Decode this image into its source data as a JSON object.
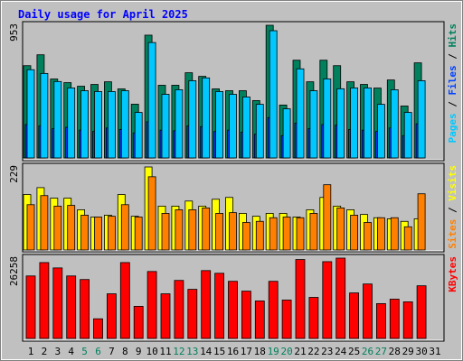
{
  "chart_data": [
    {
      "type": "bar",
      "title": "Daily usage for April 2025",
      "legend_separator": " / ",
      "ylim": [
        0,
        953
      ],
      "yticks": [
        953
      ],
      "series": [
        {
          "name": "Hits",
          "color": "#00805c",
          "values": [
            663,
            741,
            567,
            541,
            515,
            528,
            547,
            496,
            386,
            882,
            522,
            522,
            612,
            586,
            496,
            483,
            483,
            412,
            953,
            380,
            702,
            547,
            702,
            663,
            547,
            528,
            502,
            560,
            373,
            683,
            null
          ]
        },
        {
          "name": "Files",
          "color": "#0040ff",
          "values": [
            240,
            230,
            210,
            220,
            200,
            190,
            215,
            205,
            180,
            260,
            200,
            195,
            230,
            225,
            190,
            200,
            185,
            170,
            290,
            160,
            250,
            210,
            240,
            235,
            205,
            200,
            190,
            215,
            160,
            245,
            null
          ]
        },
        {
          "name": "Pages",
          "color": "#00c8ff",
          "values": [
            634,
            607,
            549,
            503,
            483,
            477,
            477,
            483,
            327,
            829,
            457,
            490,
            555,
            575,
            477,
            457,
            438,
            385,
            914,
            353,
            640,
            483,
            568,
            497,
            503,
            503,
            385,
            490,
            327,
            555,
            null
          ]
        }
      ]
    },
    {
      "type": "bar",
      "legend_separator": " / ",
      "ylim": [
        0,
        229
      ],
      "yticks": [
        229
      ],
      "series": [
        {
          "name": "Visits",
          "color": "#ffff00",
          "values": [
            153,
            172,
            143,
            143,
            111,
            91,
            96,
            153,
            93,
            229,
            121,
            121,
            135,
            121,
            140,
            145,
            101,
            93,
            101,
            101,
            91,
            111,
            145,
            121,
            111,
            98,
            89,
            86,
            79,
            86,
            null
          ]
        },
        {
          "name": "Sites",
          "color": "#ff8000",
          "values": [
            125,
            150,
            121,
            123,
            96,
            91,
            93,
            125,
            91,
            202,
            101,
            111,
            111,
            116,
            101,
            103,
            76,
            79,
            89,
            91,
            89,
            101,
            180,
            116,
            96,
            76,
            89,
            89,
            64,
            155,
            null
          ]
        }
      ]
    },
    {
      "type": "bar",
      "ylim": [
        0,
        26258
      ],
      "yticks": [
        26258
      ],
      "categories": [
        "1",
        "2",
        "3",
        "4",
        "5",
        "6",
        "7",
        "8",
        "9",
        "10",
        "11",
        "12",
        "13",
        "14",
        "15",
        "16",
        "17",
        "18",
        "19",
        "20",
        "21",
        "22",
        "23",
        "24",
        "25",
        "26",
        "27",
        "28",
        "29",
        "30",
        "31"
      ],
      "tick_label_colors": [
        "#000000",
        "#000000",
        "#000000",
        "#000000",
        "#00805c",
        "#00805c",
        "#000000",
        "#000000",
        "#000000",
        "#000000",
        "#000000",
        "#00805c",
        "#00805c",
        "#000000",
        "#000000",
        "#000000",
        "#000000",
        "#000000",
        "#00805c",
        "#00805c",
        "#000000",
        "#000000",
        "#000000",
        "#000000",
        "#000000",
        "#00805c",
        "#00805c",
        "#000000",
        "#000000",
        "#000000",
        "#000000"
      ],
      "series": [
        {
          "name": "KBytes",
          "color": "#ff0000",
          "values": [
            20426,
            24803,
            23052,
            20426,
            19259,
            6420,
            14590,
            24803,
            10505,
            21885,
            14590,
            18967,
            16049,
            22177,
            21301,
            18675,
            15465,
            12256,
            18675,
            12547,
            25800,
            13423,
            25095,
            26258,
            14882,
            17800,
            11380,
            12839,
            11964,
            17216,
            null
          ]
        }
      ]
    }
  ]
}
